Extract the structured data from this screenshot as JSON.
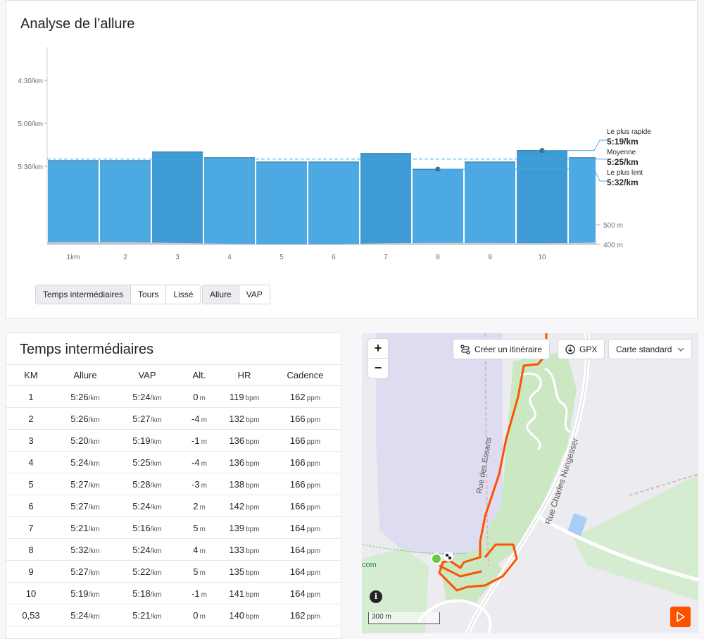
{
  "pace_panel": {
    "title": "Analyse de l’allure",
    "view_toggle": [
      "Temps intermédiaires",
      "Tours",
      "Lissé"
    ],
    "view_active": 0,
    "metric_toggle": [
      "Allure",
      "VAP"
    ],
    "metric_active": 0
  },
  "chart_data": {
    "type": "bar",
    "categories": [
      "1km",
      "2",
      "3",
      "4",
      "5",
      "6",
      "7",
      "8",
      "9",
      "10",
      ""
    ],
    "values_pace_sec_per_km": [
      326,
      326,
      320,
      324,
      327,
      327,
      321,
      332,
      327,
      319,
      324
    ],
    "yticks": [
      "4:30/km",
      "5:00/km",
      "5:30/km"
    ],
    "yticks_sec": [
      270,
      300,
      330
    ],
    "elevation_ticks": [
      "500 m",
      "400 m"
    ],
    "average_pace_sec": 325,
    "annotations": [
      {
        "label": "Le plus rapide",
        "value": "5:19/km"
      },
      {
        "label": "Moyenne",
        "value": "5:25/km"
      },
      {
        "label": "Le plus lent",
        "value": "5:32/km"
      }
    ],
    "bar_color": "#4ca9e2",
    "bar_color_highlight": "#3f9bd6",
    "grid": false
  },
  "splits_panel": {
    "title": "Temps intermédiaires",
    "headers": [
      "KM",
      "Allure",
      "VAP",
      "Alt.",
      "HR",
      "Cadence"
    ],
    "rows": [
      {
        "km": "1",
        "pace": "5:26",
        "gap": "5:24",
        "alt": "0",
        "hr": "119",
        "cad": "162"
      },
      {
        "km": "2",
        "pace": "5:26",
        "gap": "5:27",
        "alt": "-4",
        "hr": "132",
        "cad": "166"
      },
      {
        "km": "3",
        "pace": "5:20",
        "gap": "5:19",
        "alt": "-1",
        "hr": "136",
        "cad": "166"
      },
      {
        "km": "4",
        "pace": "5:24",
        "gap": "5:25",
        "alt": "-4",
        "hr": "136",
        "cad": "166"
      },
      {
        "km": "5",
        "pace": "5:27",
        "gap": "5:28",
        "alt": "-3",
        "hr": "138",
        "cad": "166"
      },
      {
        "km": "6",
        "pace": "5:27",
        "gap": "5:24",
        "alt": "2",
        "hr": "142",
        "cad": "166"
      },
      {
        "km": "7",
        "pace": "5:21",
        "gap": "5:16",
        "alt": "5",
        "hr": "139",
        "cad": "164"
      },
      {
        "km": "8",
        "pace": "5:32",
        "gap": "5:24",
        "alt": "4",
        "hr": "133",
        "cad": "164"
      },
      {
        "km": "9",
        "pace": "5:27",
        "gap": "5:22",
        "alt": "5",
        "hr": "135",
        "cad": "164"
      },
      {
        "km": "10",
        "pace": "5:19",
        "gap": "5:18",
        "alt": "-1",
        "hr": "141",
        "cad": "164"
      },
      {
        "km": "0,53",
        "pace": "5:24",
        "gap": "5:21",
        "alt": "0",
        "hr": "140",
        "cad": "162"
      }
    ],
    "units": {
      "pace": "/km",
      "alt": "m",
      "hr": "bpm",
      "cad": "ppm"
    }
  },
  "map": {
    "zoom_in": "+",
    "zoom_out": "−",
    "route_button": "Créer un itinéraire",
    "gpx_button": "GPX",
    "map_type": "Carte standard",
    "scale": "300 m",
    "attribution": "com",
    "info": "i",
    "street_1": "Rue des Essarts",
    "street_2": "Rue Charles Nungesser",
    "route_color": "#fc5200",
    "park_color": "#cbe8c3"
  }
}
